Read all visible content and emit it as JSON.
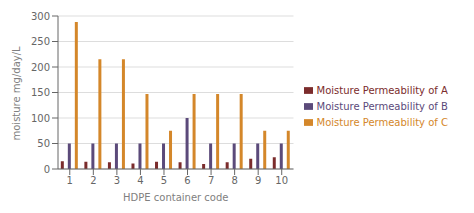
{
  "chart_data": {
    "type": "bar",
    "xlabel": "HDPE container code",
    "ylabel": "moisture mg/day/L",
    "categories": [
      1,
      2,
      3,
      4,
      5,
      6,
      7,
      8,
      9,
      10
    ],
    "series": [
      {
        "name": "Moisture Permeability of A",
        "color": "#7B2C2C",
        "values": [
          15,
          14,
          13,
          11,
          14,
          13,
          10,
          13,
          20,
          23
        ]
      },
      {
        "name": "Moisture Permeability of B",
        "color": "#5B4A7A",
        "values": [
          50,
          50,
          50,
          50,
          50,
          100,
          50,
          50,
          50,
          50
        ]
      },
      {
        "name": "Moisture Permeability of C",
        "color": "#D4872A",
        "values": [
          288,
          215,
          215,
          147,
          75,
          147,
          147,
          147,
          75,
          75
        ]
      }
    ],
    "ylim": [
      0,
      300
    ],
    "yticks": [
      0,
      50,
      100,
      150,
      200,
      250,
      300
    ],
    "grid": true,
    "legend": "right"
  }
}
